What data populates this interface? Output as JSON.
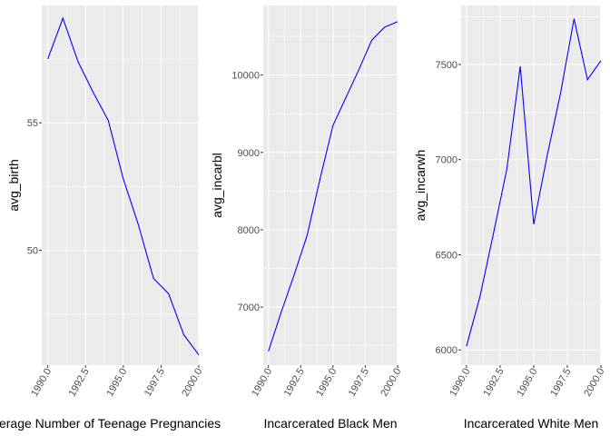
{
  "chart_data": [
    {
      "type": "line",
      "xlabel": "Average Number of Teenage Pregnancies",
      "ylabel": "avg_birth",
      "x": [
        1990,
        1991,
        1992,
        1993,
        1994,
        1995,
        1996,
        1997,
        1998,
        1999,
        2000
      ],
      "y": [
        57.5,
        59.1,
        57.4,
        56.2,
        55.1,
        52.8,
        51.0,
        48.9,
        48.3,
        46.7,
        45.9
      ],
      "xlim": [
        1989.6,
        2000.0
      ],
      "ylim": [
        45.5,
        59.6
      ],
      "xticks": [
        1990,
        1992.5,
        1995,
        1997.5,
        2000
      ],
      "xtick_labels": [
        "1990.0",
        "1992.5",
        "1995.0",
        "1997.5",
        "2000.0"
      ],
      "yticks": [
        50,
        55
      ],
      "ytick_labels": [
        "50",
        "55"
      ],
      "grid": true,
      "line_color": "#0000ff"
    },
    {
      "type": "line",
      "xlabel": "Incarcerated Black Men",
      "ylabel": "avg_incarbl",
      "x": [
        1990,
        1991,
        1992,
        1993,
        1994,
        1995,
        1996,
        1997,
        1998,
        1999,
        2000
      ],
      "y": [
        6430,
        6940,
        7420,
        7930,
        8660,
        9350,
        9710,
        10070,
        10450,
        10620,
        10690
      ],
      "xlim": [
        1989.6,
        2000.0
      ],
      "ylim": [
        6250,
        10900
      ],
      "xticks": [
        1990,
        1992.5,
        1995,
        1997.5,
        2000
      ],
      "xtick_labels": [
        "1990.0",
        "1992.5",
        "1995.0",
        "1997.5",
        "2000.0"
      ],
      "yticks": [
        7000,
        8000,
        9000,
        10000
      ],
      "ytick_labels": [
        "7000",
        "8000",
        "9000",
        "10000"
      ],
      "grid": true,
      "line_color": "#0000ff"
    },
    {
      "type": "line",
      "xlabel": "Incarcerated White Men",
      "ylabel": "avg_incarwh",
      "x": [
        1990,
        1991,
        1992,
        1993,
        1994,
        1995,
        1996,
        1997,
        1998,
        1999,
        2000
      ],
      "y": [
        6020,
        6280,
        6610,
        6950,
        7490,
        6660,
        7020,
        7350,
        7740,
        7420,
        7520
      ],
      "xlim": [
        1989.6,
        2000.0
      ],
      "ylim": [
        5920,
        7810
      ],
      "xticks": [
        1990,
        1992.5,
        1995,
        1997.5,
        2000
      ],
      "xtick_labels": [
        "1990.0",
        "1992.5",
        "1995.0",
        "1997.5",
        "2000.0"
      ],
      "yticks": [
        6000,
        6500,
        7000,
        7500
      ],
      "ytick_labels": [
        "6000",
        "6500",
        "7000",
        "7500"
      ],
      "grid": true,
      "line_color": "#0000ff"
    }
  ]
}
